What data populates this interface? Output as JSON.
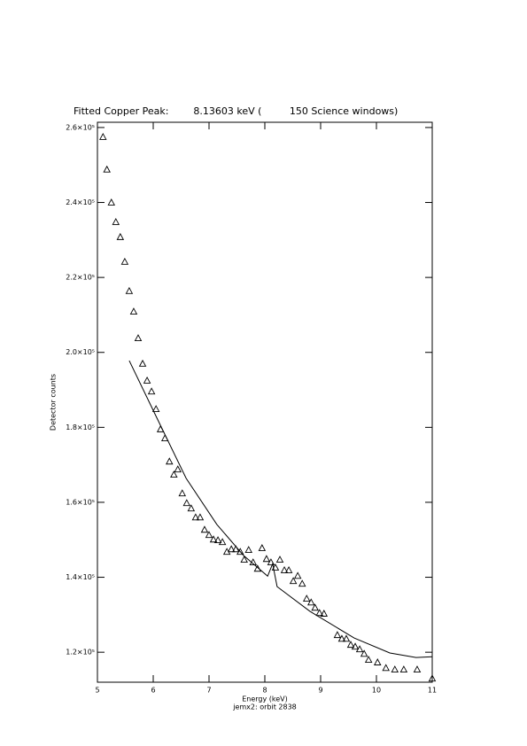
{
  "chart_data": {
    "type": "scatter",
    "title": "Fitted Copper Peak:        8.13603 keV (         150 Science windows)",
    "subtitle": "jemx2: orbit 2838",
    "x_label": "Energy (keV)",
    "y_label": "Detector counts",
    "xlim": [
      5,
      11
    ],
    "ylim": [
      112000,
      261400
    ],
    "xticks": [
      5,
      6,
      7,
      8,
      9,
      10,
      11
    ],
    "yticks": [
      {
        "value": 120000,
        "label": "1.2×10⁵"
      },
      {
        "value": 140000,
        "label": "1.4×10⁵"
      },
      {
        "value": 160000,
        "label": "1.6×10⁵"
      },
      {
        "value": 180000,
        "label": "1.8×10⁵"
      },
      {
        "value": 200000,
        "label": "2.0×10⁵"
      },
      {
        "value": 220000,
        "label": "2.2×10⁵"
      },
      {
        "value": 240000,
        "label": "2.4×10⁵"
      },
      {
        "value": 260000,
        "label": "2.6×10⁵"
      }
    ],
    "series": [
      {
        "marker": "triangle",
        "color": "#000000",
        "x": [
          5.1,
          5.17,
          5.25,
          5.33,
          5.41,
          5.49,
          5.57,
          5.65,
          5.73,
          5.81,
          5.89,
          5.97,
          6.05,
          6.13,
          6.21,
          6.29,
          6.37,
          6.44,
          6.52,
          6.6,
          6.68,
          6.76,
          6.84,
          6.92,
          7.0,
          7.08,
          7.16,
          7.24,
          7.32,
          7.4,
          7.48,
          7.56,
          7.63,
          7.71,
          7.79,
          7.87,
          7.95,
          8.03,
          8.11,
          8.19,
          8.27,
          8.35,
          8.43,
          8.51,
          8.59,
          8.67,
          8.75,
          8.83,
          8.9,
          8.98,
          9.06,
          9.3,
          9.38,
          9.46,
          9.54,
          9.62,
          9.7,
          9.78,
          9.86,
          10.02,
          10.17,
          10.33,
          10.49,
          10.73,
          11.0
        ],
        "values": [
          257400,
          248700,
          239900,
          234700,
          230700,
          224100,
          216300,
          210800,
          203700,
          196900,
          192400,
          189500,
          184800,
          179400,
          177000,
          170800,
          167300,
          168700,
          162300,
          159700,
          158300,
          155900,
          155900,
          152600,
          151200,
          150000,
          149800,
          149300,
          146700,
          147400,
          147400,
          146700,
          144600,
          147200,
          143900,
          142200,
          147700,
          144800,
          143900,
          142500,
          144600,
          141800,
          141800,
          138900,
          140300,
          138200,
          134200,
          133200,
          131800,
          130400,
          130200,
          124500,
          123500,
          123500,
          121900,
          121400,
          120700,
          119500,
          117900,
          117200,
          115700,
          115300,
          115300,
          115300,
          112900
        ]
      },
      {
        "marker": "line",
        "color": "#000000",
        "x": [
          5.57,
          6.03,
          6.59,
          7.14,
          7.62,
          8.05,
          8.14,
          8.22,
          8.81,
          9.6,
          10.24,
          10.71,
          11.0
        ],
        "values": [
          197800,
          183600,
          166400,
          154100,
          145800,
          140300,
          143600,
          137500,
          130900,
          123800,
          119800,
          118600,
          118800
        ]
      }
    ]
  }
}
